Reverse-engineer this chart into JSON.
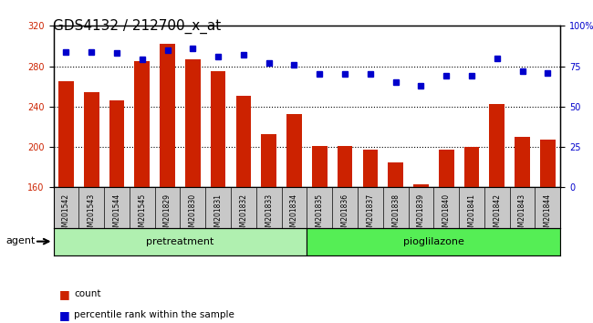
{
  "title": "GDS4132 / 212700_x_at",
  "samples": [
    "GSM201542",
    "GSM201543",
    "GSM201544",
    "GSM201545",
    "GSM201829",
    "GSM201830",
    "GSM201831",
    "GSM201832",
    "GSM201833",
    "GSM201834",
    "GSM201835",
    "GSM201836",
    "GSM201837",
    "GSM201838",
    "GSM201839",
    "GSM201840",
    "GSM201841",
    "GSM201842",
    "GSM201843",
    "GSM201844"
  ],
  "counts": [
    265,
    254,
    246,
    285,
    302,
    287,
    275,
    251,
    213,
    233,
    201,
    201,
    197,
    185,
    163,
    197,
    200,
    243,
    210,
    207
  ],
  "percentile": [
    84,
    84,
    83,
    79,
    85,
    86,
    81,
    82,
    77,
    76,
    70,
    70,
    70,
    65,
    63,
    69,
    69,
    80,
    72,
    71
  ],
  "group_labels": [
    "pretreatment",
    "pioglilazone"
  ],
  "group_ranges": [
    [
      0,
      9
    ],
    [
      10,
      19
    ]
  ],
  "group_colors": [
    "#90ee90",
    "#55dd55"
  ],
  "bar_color": "#cc2200",
  "dot_color": "#0000cc",
  "ylim_left": [
    160,
    320
  ],
  "ylim_right": [
    0,
    100
  ],
  "yticks_left": [
    160,
    200,
    240,
    280,
    320
  ],
  "yticks_right": [
    0,
    25,
    50,
    75,
    100
  ],
  "grid_lines": [
    200,
    240,
    280
  ],
  "title_fontsize": 11,
  "tick_fontsize": 7,
  "label_fontsize": 8,
  "agent_label": "agent",
  "legend_count_label": "count",
  "legend_pct_label": "percentile rank within the sample",
  "background_color": "#ffffff",
  "plot_bg_color": "#ffffff",
  "xlabel_area_color": "#c8c8c8"
}
